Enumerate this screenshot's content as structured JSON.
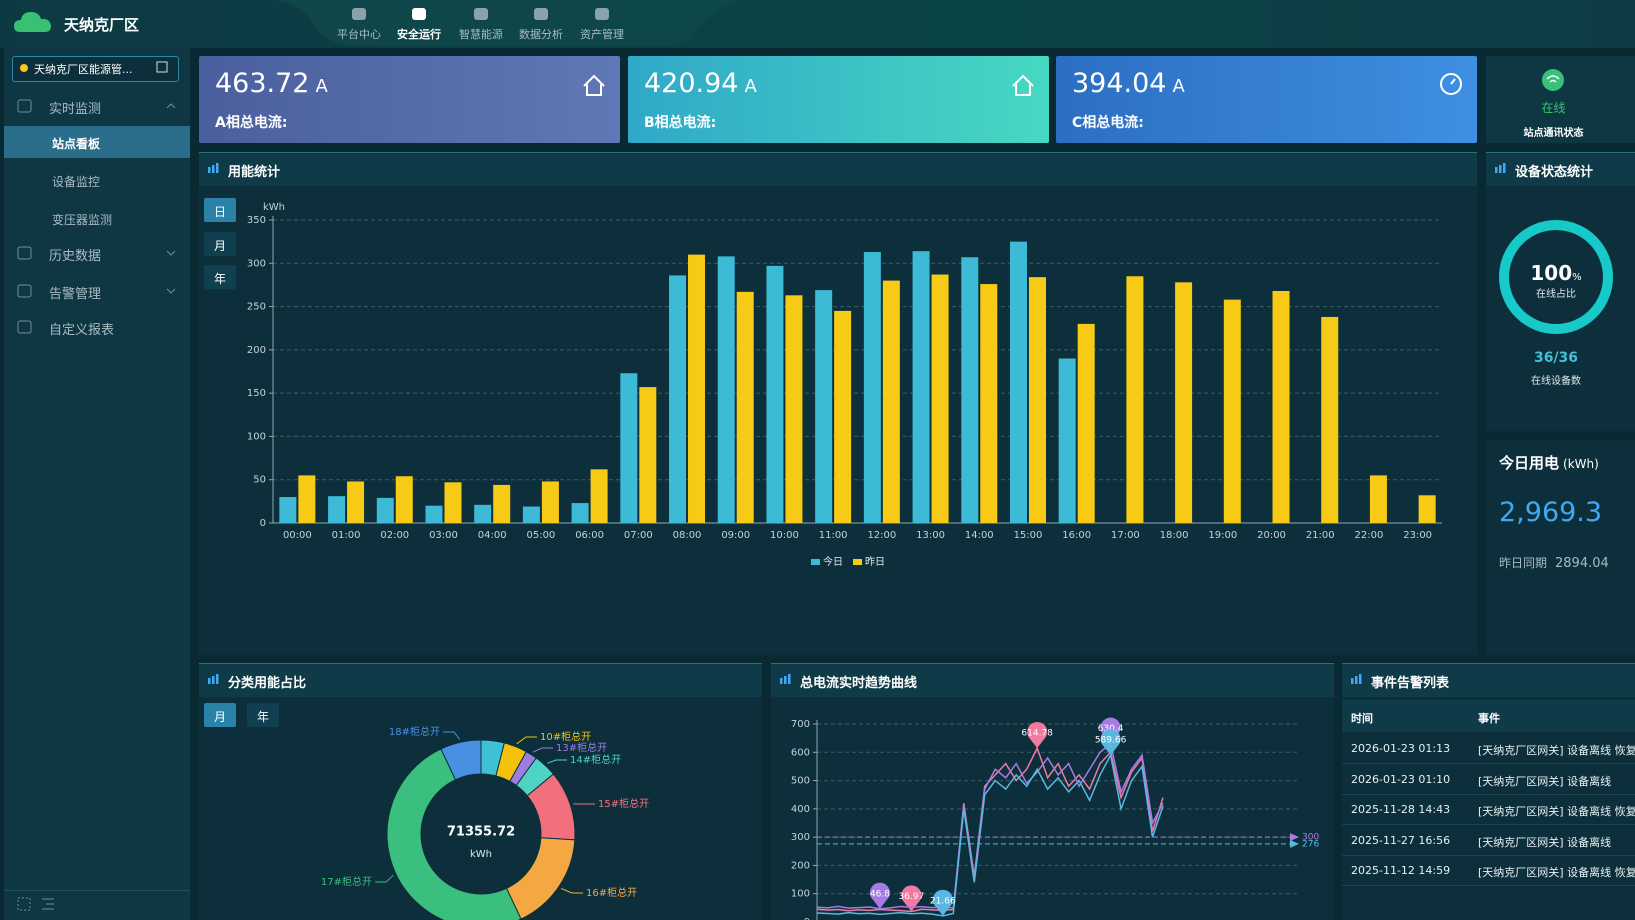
{
  "header": {
    "title": "天纳克厂区",
    "nav": [
      "平台中心",
      "安全运行",
      "智慧能源",
      "数据分析",
      "资产管理"
    ]
  },
  "sidebar": {
    "site": "天纳克厂区能源管...",
    "menu": [
      {
        "label": "实时监测",
        "children": [
          "站点看板",
          "设备监控",
          "变压器监测"
        ]
      },
      {
        "label": "历史数据"
      },
      {
        "label": "告警管理"
      },
      {
        "label": "自定义报表"
      }
    ]
  },
  "cards": [
    {
      "value": 463.72,
      "unit": "A",
      "label": "A相总电流:"
    },
    {
      "value": 420.94,
      "unit": "A",
      "label": "B相总电流:"
    },
    {
      "value": 394.04,
      "unit": "A",
      "label": "C相总电流:"
    }
  ],
  "status_card": {
    "status": "在线",
    "label": "站点通讯状态"
  },
  "device_status": {
    "title": "设备状态统计",
    "percent": 100,
    "unit": "%",
    "percent_label": "在线占比",
    "count": "36/36",
    "count_label": "在线设备数"
  },
  "today_energy": {
    "title": "今日用电",
    "unit": "(kWh)",
    "value": {
      "value": 2969.3,
      "label": "2,969.3"
    },
    "compare_label": "昨日同期",
    "compare_value": 2894.04
  },
  "chart_data": [
    {
      "type": "bar",
      "title": "用能统计",
      "periods": [
        "日",
        "月",
        "年"
      ],
      "y_unit": "kWh",
      "categories": [
        "00:00",
        "01:00",
        "02:00",
        "03:00",
        "04:00",
        "05:00",
        "06:00",
        "07:00",
        "08:00",
        "09:00",
        "10:00",
        "11:00",
        "12:00",
        "13:00",
        "14:00",
        "15:00",
        "16:00",
        "17:00",
        "18:00",
        "19:00",
        "20:00",
        "21:00",
        "22:00",
        "23:00"
      ],
      "series": [
        {
          "name": "今日",
          "color": "#3cbad6",
          "values": [
            30,
            31,
            29,
            20,
            21,
            19,
            23,
            173,
            286,
            308,
            297,
            269,
            313,
            314,
            307,
            325,
            190,
            null,
            null,
            null,
            null,
            null,
            null,
            null
          ]
        },
        {
          "name": "昨日",
          "color": "#f7ca16",
          "values": [
            55,
            48,
            54,
            47,
            44,
            48,
            62,
            157,
            310,
            267,
            263,
            245,
            280,
            287,
            276,
            284,
            230,
            285,
            278,
            258,
            268,
            238,
            55,
            32
          ]
        }
      ],
      "ylim": [
        0,
        350
      ],
      "yticks": [
        0,
        50,
        100,
        150,
        200,
        250,
        300,
        350
      ],
      "grid": true,
      "legend": "bottom"
    },
    {
      "type": "donut",
      "title": "分类用能占比",
      "periods": [
        "月",
        "年"
      ],
      "total": 71355.72,
      "unit": "kWh",
      "categories": [
        null,
        "10#柜总开",
        "13#柜总开",
        "14#柜总开",
        "15#柜总开",
        "16#柜总开",
        "17#柜总开",
        "18#柜总开"
      ],
      "values": [
        2854,
        2854,
        1427,
        2854,
        8563,
        12130,
        35678.72,
        4995
      ],
      "colors": [
        "#3ec1d3",
        "#f4c20d",
        "#9b7ee0",
        "#4fd3c4",
        "#f2707e",
        "#f5a842",
        "#3bbf7f",
        "#4a90e2"
      ]
    },
    {
      "type": "line",
      "title": "总电流实时趋势曲线",
      "ylim": [
        0,
        700
      ],
      "yticks": [
        0,
        100,
        200,
        300,
        400,
        500,
        600,
        700
      ],
      "grid": true,
      "series": [
        {
          "color": "#f07aa0",
          "values": [
            45,
            42,
            44,
            40,
            43,
            41,
            44,
            42,
            40,
            36.97,
            45,
            43,
            41,
            44,
            420,
            160,
            480,
            520,
            560,
            500,
            540,
            614.78,
            510,
            560,
            480,
            520,
            470,
            560,
            600,
            440,
            530,
            580,
            320,
            440
          ]
        },
        {
          "color": "#a67be6",
          "values": [
            52,
            50,
            55,
            49,
            51,
            53,
            46.8,
            50,
            55,
            52,
            54,
            51,
            53,
            50,
            410,
            150,
            470,
            540,
            510,
            560,
            490,
            530,
            580,
            520,
            560,
            480,
            540,
            600,
            630.4,
            460,
            540,
            590,
            350,
            420
          ]
        },
        {
          "color": "#5ab8e0",
          "values": [
            32,
            30,
            28,
            33,
            29,
            31,
            27,
            30,
            33,
            29,
            31,
            28,
            21.66,
            30,
            400,
            140,
            450,
            500,
            470,
            520,
            480,
            540,
            470,
            510,
            460,
            500,
            430,
            520,
            589.66,
            400,
            500,
            550,
            300,
            410
          ]
        }
      ],
      "mark_lines": [
        {
          "value": 300,
          "color": "#b07be0"
        },
        {
          "value": 276,
          "color": "#5ab8e0"
        }
      ]
    }
  ],
  "events": {
    "title": "事件告警列表",
    "columns": [
      "时间",
      "事件"
    ],
    "rows": [
      [
        "2026-01-23 01:13",
        "[天纳克厂区网关] 设备离线 恢复"
      ],
      [
        "2026-01-23 01:10",
        "[天纳克厂区网关] 设备离线"
      ],
      [
        "2025-11-28 14:43",
        "[天纳克厂区网关] 设备离线 恢复"
      ],
      [
        "2025-11-27 16:56",
        "[天纳克厂区网关] 设备离线"
      ],
      [
        "2025-11-12 14:59",
        "[天纳克厂区网关] 设备离线 恢复"
      ]
    ]
  }
}
